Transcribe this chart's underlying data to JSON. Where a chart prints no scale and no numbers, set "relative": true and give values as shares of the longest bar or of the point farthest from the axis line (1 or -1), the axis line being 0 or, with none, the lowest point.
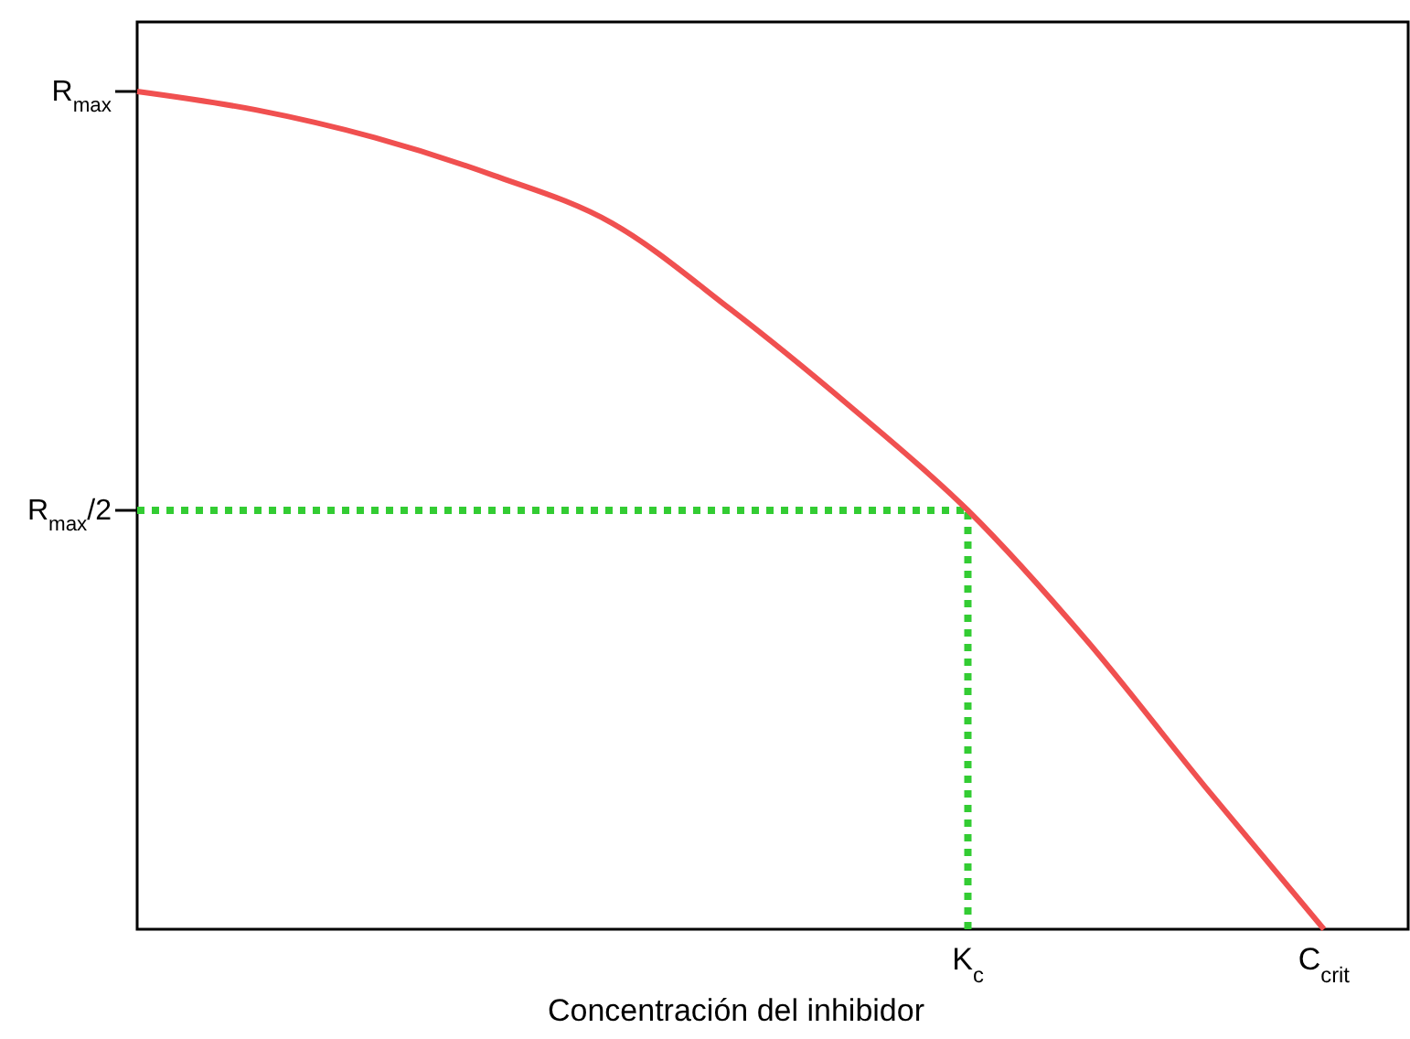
{
  "chart_data": {
    "type": "line",
    "xlabel": "Concentración del inhibidor",
    "relative": true,
    "categories": [
      null,
      null,
      null,
      null,
      null,
      null,
      null,
      "K$_{c}$",
      null,
      null,
      "C$_{crit}$"
    ],
    "series": [
      {
        "color": "#f05050",
        "values": [
          1,
          0.978,
          0.945,
          0.9,
          0.843,
          0.74,
          0.625,
          0.5,
          0.345,
          0.17,
          0
        ]
      }
    ],
    "ref_lines": [
      {
        "axis": "y",
        "value": 0.5,
        "label": "R$_{max}$/2",
        "color": "#33cc33",
        "line_style": "dotted"
      },
      {
        "axis": "x",
        "value": "K$_{c}$",
        "color": "#33cc33",
        "line_style": "dotted"
      }
    ],
    "annotations": [
      "R$_{max}$"
    ]
  }
}
